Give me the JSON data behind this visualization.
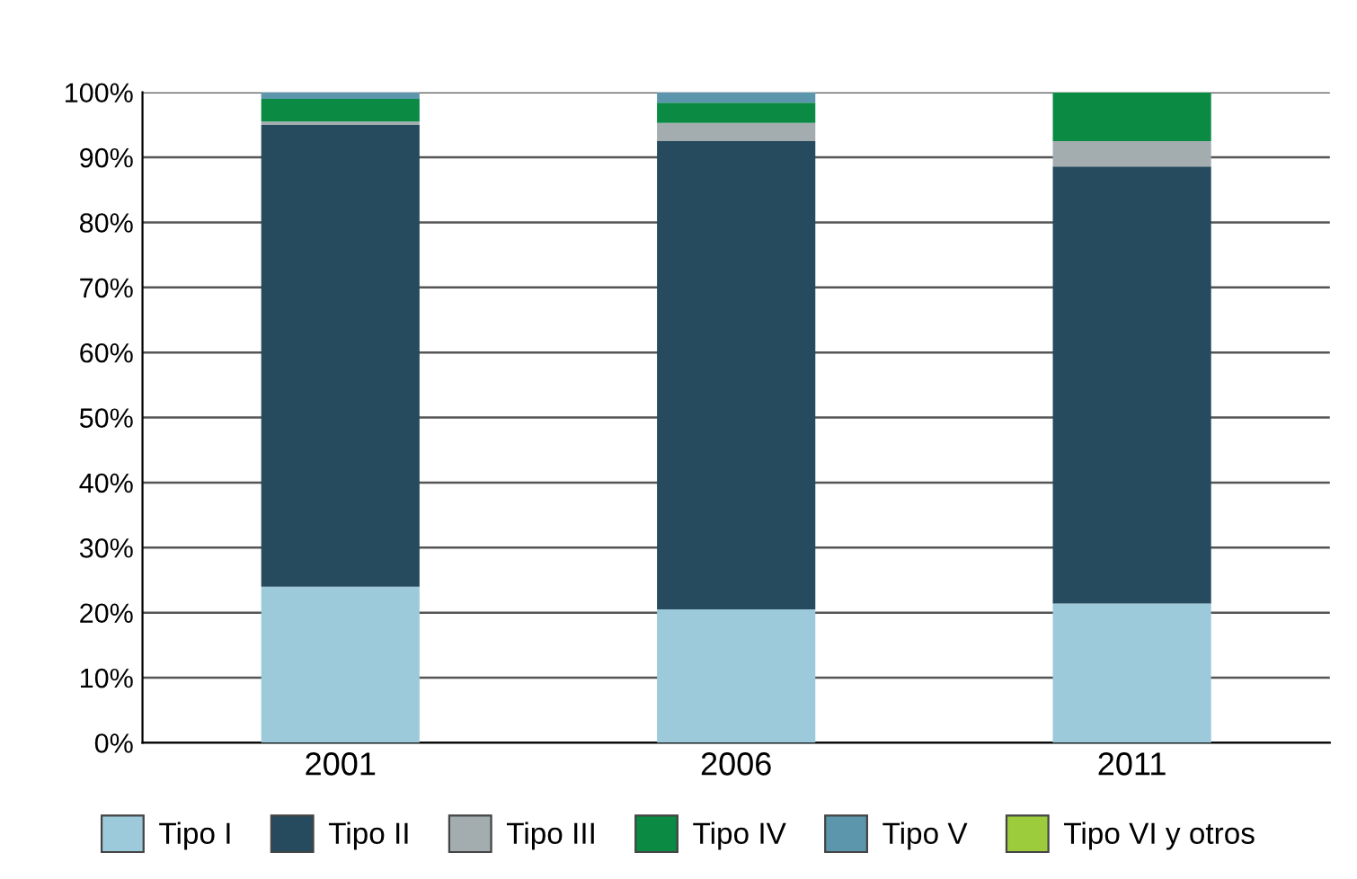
{
  "chart_data": {
    "type": "bar",
    "stacked": true,
    "categories": [
      "2001",
      "2006",
      "2011"
    ],
    "series": [
      {
        "name": "Tipo I",
        "color": "#9ccadb",
        "values": [
          24,
          20.5,
          21.4
        ]
      },
      {
        "name": "Tipo II",
        "color": "#264a5e",
        "values": [
          71,
          72,
          67.2
        ]
      },
      {
        "name": "Tipo III",
        "color": "#a3adb0",
        "values": [
          0.5,
          2.8,
          3.9
        ]
      },
      {
        "name": "Tipo IV",
        "color": "#0a8a43",
        "values": [
          3.5,
          3.1,
          7.5
        ]
      },
      {
        "name": "Tipo V",
        "color": "#5b96ad",
        "values": [
          1,
          1.6,
          0
        ]
      },
      {
        "name": "Tipo VI y otros",
        "color": "#9ccc3c",
        "values": [
          0,
          0,
          0
        ]
      }
    ],
    "ylim": [
      0,
      100
    ],
    "yticks": [
      {
        "value": 0,
        "label": "0%"
      },
      {
        "value": 10,
        "label": "10%"
      },
      {
        "value": 20,
        "label": "20%"
      },
      {
        "value": 30,
        "label": "30%"
      },
      {
        "value": 40,
        "label": "40%"
      },
      {
        "value": 50,
        "label": "50%"
      },
      {
        "value": 60,
        "label": "60%"
      },
      {
        "value": 70,
        "label": "70%"
      },
      {
        "value": 80,
        "label": "80%"
      },
      {
        "value": 90,
        "label": "90%"
      },
      {
        "value": 100,
        "label": "100%"
      }
    ],
    "grid": "y",
    "legend": "bottom"
  }
}
